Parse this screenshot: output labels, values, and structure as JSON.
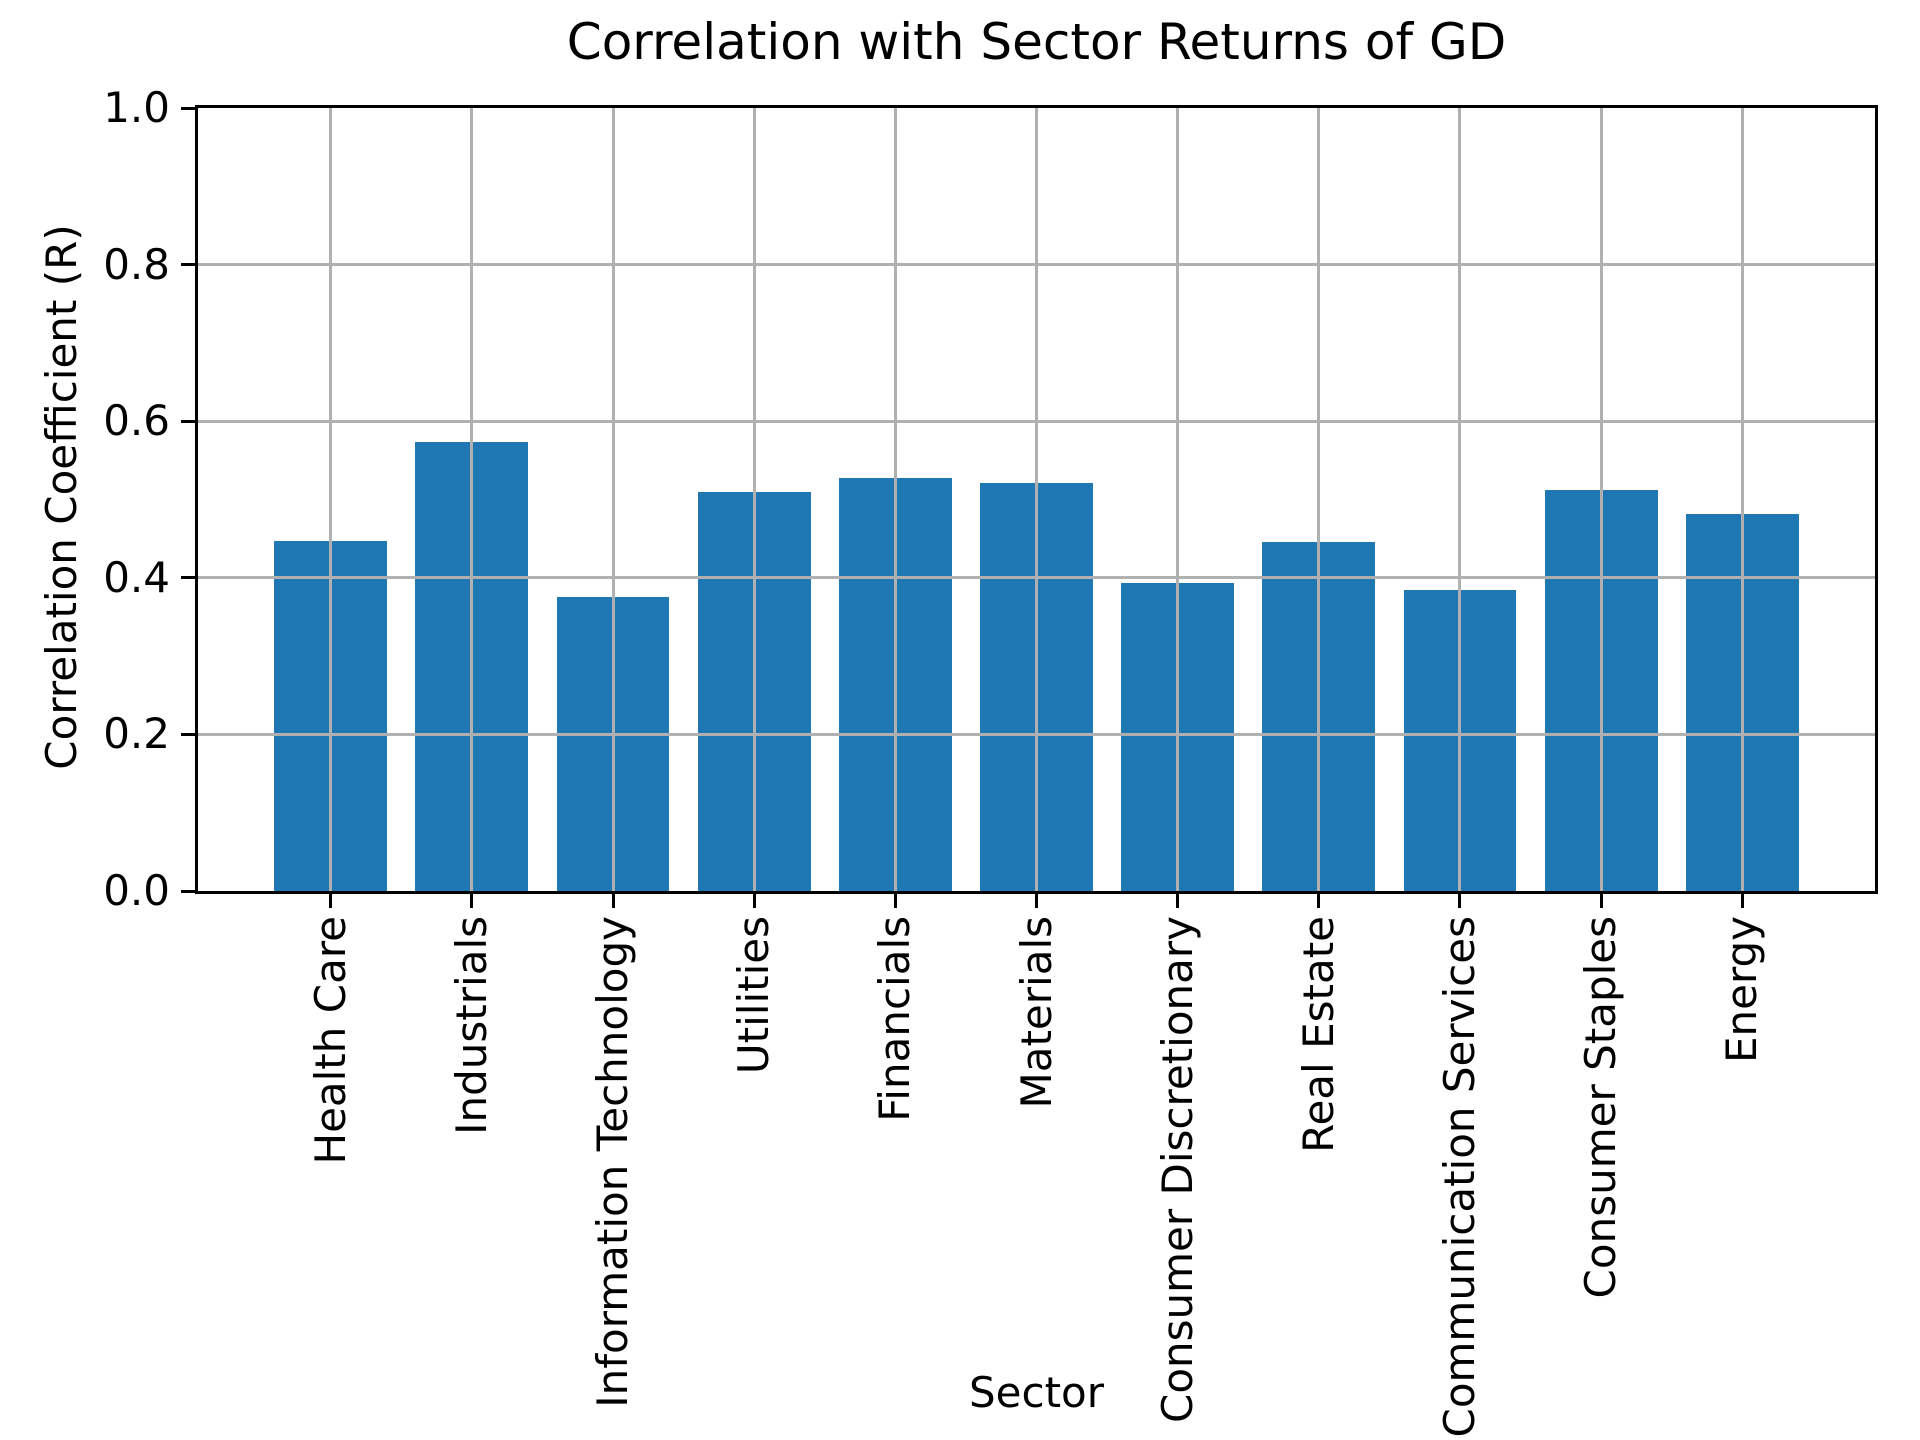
{
  "chart_data": {
    "type": "bar",
    "title": "Correlation with Sector Returns of GD",
    "xlabel": "Sector",
    "ylabel": "Correlation Coefficient (R)",
    "categories": [
      "Health Care",
      "Industrials",
      "Information Technology",
      "Utilities",
      "Financials",
      "Materials",
      "Consumer Discretionary",
      "Real Estate",
      "Communication Services",
      "Consumer Staples",
      "Energy"
    ],
    "values": [
      0.447,
      0.574,
      0.376,
      0.509,
      0.527,
      0.521,
      0.393,
      0.446,
      0.385,
      0.512,
      0.481
    ],
    "ylim": [
      0.0,
      1.0
    ],
    "yticks": [
      0.0,
      0.2,
      0.4,
      0.6,
      0.8,
      1.0
    ],
    "ytick_labels": [
      "0.0",
      "0.2",
      "0.4",
      "0.6",
      "0.8",
      "1.0"
    ],
    "x_tick_rotation": 90,
    "grid": true,
    "legend": false,
    "bar_width_fraction": 0.8,
    "colors": {
      "bar": "#1f77b4",
      "grid": "#b0b0b0",
      "axis": "#000000",
      "text": "#000000",
      "background": "#ffffff"
    }
  }
}
